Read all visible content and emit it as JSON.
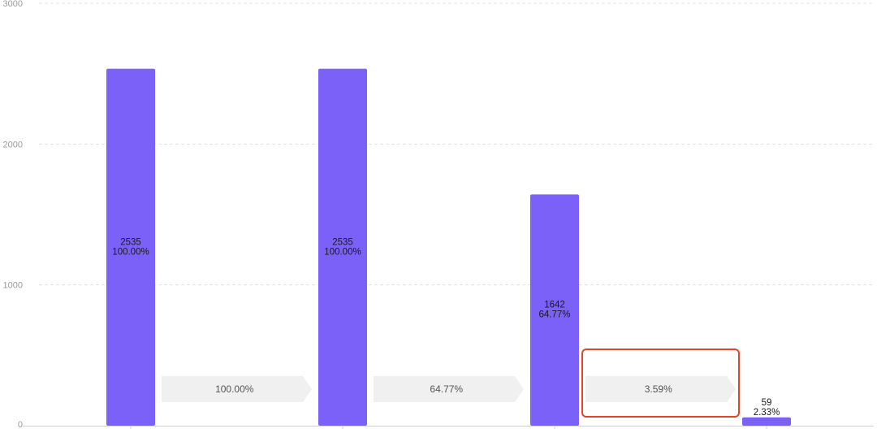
{
  "chart_data": {
    "type": "bar",
    "title": "",
    "xlabel": "",
    "ylabel": "",
    "ylim": [
      0,
      3000
    ],
    "yticks": [
      {
        "value": 0,
        "label": "0"
      },
      {
        "value": 1000,
        "label": "1000"
      },
      {
        "value": 2000,
        "label": "2000"
      },
      {
        "value": 3000,
        "label": "3000"
      }
    ],
    "grid": true,
    "legend": "none",
    "bar_color": "#7b61f8",
    "bars": [
      {
        "value": 2535,
        "count_label": "2535",
        "percent_label": "100.00%"
      },
      {
        "value": 2535,
        "count_label": "2535",
        "percent_label": "100.00%"
      },
      {
        "value": 1642,
        "count_label": "1642",
        "percent_label": "64.77%"
      },
      {
        "value": 59,
        "count_label": "59",
        "percent_label": "2.33%"
      }
    ],
    "conversions": [
      {
        "label": "100.00%"
      },
      {
        "label": "64.77%"
      },
      {
        "label": "3.59%",
        "highlighted": true
      }
    ],
    "highlight_color": "#e0452b",
    "conversion_fill": "#f0f0f0"
  }
}
